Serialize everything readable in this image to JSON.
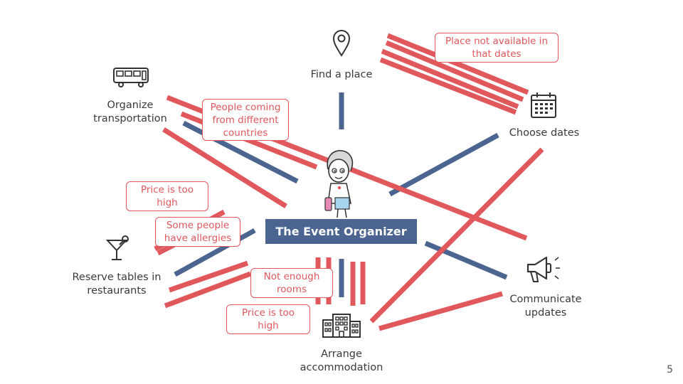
{
  "center": {
    "title": "The Event Organizer"
  },
  "nodes": {
    "find_place": "Find a place",
    "choose_dates": "Choose dates",
    "organize_transportation": "Organize\ntransportation",
    "reserve_tables": "Reserve tables in\nrestaurants",
    "arrange_accommodation": "Arrange\naccommodation",
    "communicate_updates": "Communicate\nupdates"
  },
  "notes": {
    "place_not_available": "Place not available in\nthat dates",
    "people_different_countries": "People coming\nfrom different\ncountries",
    "price_high_1": "Price is too\nhigh",
    "allergies": "Some people\nhave allergies",
    "not_enough_rooms": "Not enough\nrooms",
    "price_high_2": "Price is too\nhigh"
  },
  "icons": {
    "find_place": "map-pin-icon",
    "choose_dates": "calendar-icon",
    "organize_transportation": "bus-icon",
    "reserve_tables": "cocktail-icon",
    "arrange_accommodation": "building-icon",
    "communicate_updates": "megaphone-icon",
    "center": "organizer-avatar-icon"
  },
  "colors": {
    "blue": "#4b6590",
    "red": "#e0575c"
  },
  "page_number": "5"
}
